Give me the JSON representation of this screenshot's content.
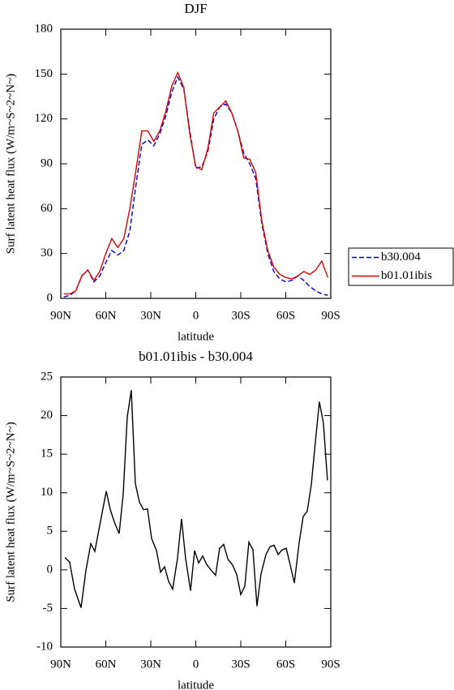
{
  "chart_data": [
    {
      "type": "line",
      "title": "DJF",
      "x_label": "latitude",
      "y_label": "Surf latent heat flux (W/m~S~2~N~)",
      "x": [
        88,
        84,
        80,
        76,
        72,
        68,
        64,
        60,
        56,
        52,
        48,
        44,
        40,
        36,
        32,
        28,
        24,
        20,
        16,
        12,
        8,
        4,
        0,
        -4,
        -8,
        -12,
        -16,
        -20,
        -24,
        -28,
        -32,
        -36,
        -40,
        -44,
        -48,
        -52,
        -56,
        -60,
        -64,
        -68,
        -72,
        -76,
        -80,
        -84,
        -88
      ],
      "series": [
        {
          "name": "b30.004",
          "color": "#0000cc",
          "style": "dashed",
          "values": [
            1,
            2,
            5,
            15,
            19,
            11,
            15,
            24,
            32,
            29,
            32,
            45,
            75,
            103,
            106,
            102,
            110,
            122,
            138,
            148,
            140,
            112,
            87,
            88,
            98,
            120,
            128,
            130,
            124,
            112,
            97,
            90,
            80,
            50,
            30,
            18,
            13,
            11,
            12,
            15,
            12,
            8,
            5,
            3,
            2
          ]
        },
        {
          "name": "b01.01ibis",
          "color": "#dd0000",
          "style": "solid",
          "values": [
            3,
            3,
            5,
            15,
            19,
            12,
            18,
            30,
            40,
            34,
            40,
            60,
            85,
            112,
            112,
            105,
            112,
            125,
            142,
            151,
            141,
            110,
            88,
            86,
            100,
            124,
            128,
            132,
            124,
            112,
            94,
            93,
            84,
            52,
            32,
            21,
            16,
            14,
            13,
            15,
            18,
            16,
            19,
            25,
            14
          ]
        }
      ],
      "xlim": [
        90,
        -90
      ],
      "xticks": [
        {
          "value": 90,
          "label": "90N"
        },
        {
          "value": 60,
          "label": "60N"
        },
        {
          "value": 30,
          "label": "30N"
        },
        0,
        {
          "value": -30,
          "label": "30S"
        },
        {
          "value": -60,
          "label": "60S"
        },
        {
          "value": -90,
          "label": "90S"
        }
      ],
      "ylim": [
        0,
        180
      ],
      "yticks": [
        0,
        30,
        60,
        90,
        120,
        150,
        180
      ],
      "legend": "right"
    },
    {
      "type": "line",
      "title": "b01.01ibis - b30.004",
      "x_label": "latitude",
      "y_label": "Surf latent heat flux (W/m~S~2~N~)",
      "x": [
        87.3,
        84.1,
        80.8,
        76.5,
        73.2,
        70,
        67.3,
        64.6,
        59.7,
        57,
        54.3,
        51.1,
        48.4,
        45.7,
        43,
        40.3,
        37.6,
        34.9,
        32.2,
        29.5,
        26.2,
        23.5,
        20.8,
        18.1,
        15.4,
        12.2,
        9.5,
        6.8,
        3.5,
        0.8,
        -1.9,
        -4.6,
        -7.3,
        -10,
        -13.2,
        -15.9,
        -18.6,
        -21.4,
        -24.6,
        -27.3,
        -30,
        -32.7,
        -35.4,
        -38.1,
        -40.8,
        -43.5,
        -46.8,
        -49.5,
        -52.2,
        -54.9,
        -57.6,
        -60.3,
        -63,
        -65.7,
        -68.9,
        -71.6,
        -74.3,
        -77,
        -79.7,
        -82.4,
        -85.1,
        -87.8
      ],
      "series": [
        {
          "color": "#000000",
          "style": "solid",
          "values": [
            1.6,
            1.0,
            -2.5,
            -4.9,
            0,
            3.4,
            2.4,
            5.2,
            10.2,
            7.8,
            6.2,
            4.7,
            9.8,
            19.8,
            23.3,
            11.2,
            8.8,
            7.8,
            7.9,
            4.1,
            2.5,
            -0.3,
            0.4,
            -1.5,
            -2.5,
            1.5,
            6.6,
            1.5,
            -2.7,
            2.5,
            0.9,
            1.8,
            0.7,
            0,
            -0.7,
            2.8,
            3.3,
            1.4,
            0.6,
            -0.6,
            -3.2,
            -2.1,
            3.6,
            2.6,
            -4.7,
            -0.5,
            2.0,
            3.0,
            3.2,
            2.0,
            2.6,
            2.8,
            0.6,
            -1.7,
            3.5,
            6.9,
            7.6,
            11,
            16.5,
            21.8,
            19,
            11.6
          ]
        }
      ],
      "xlim": [
        90,
        -90
      ],
      "xticks": [
        {
          "value": 90,
          "label": "90N"
        },
        {
          "value": 60,
          "label": "60N"
        },
        {
          "value": 30,
          "label": "30N"
        },
        0,
        {
          "value": -30,
          "label": "30S"
        },
        {
          "value": -60,
          "label": "60S"
        },
        {
          "value": -90,
          "label": "90S"
        }
      ],
      "ylim": [
        -10,
        25
      ],
      "yticks": [
        -10,
        -5,
        0,
        5,
        10,
        15,
        20,
        25
      ]
    }
  ]
}
